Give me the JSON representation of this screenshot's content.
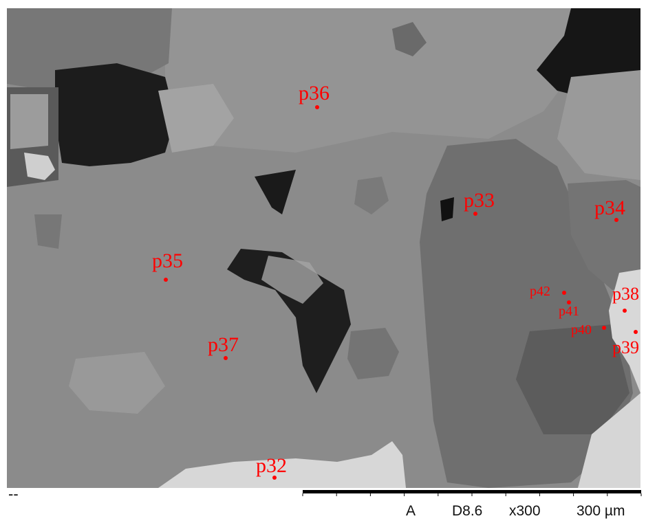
{
  "image": {
    "description_colors": {
      "matrix_gray": "#8a8a8a",
      "dark_pore": "#1a1a1a",
      "bright_phase": "#d4d4d4",
      "mid_gray_grain": "#7a7a7a",
      "label_red": "#ff0000"
    }
  },
  "points": [
    {
      "label": "p36"
    },
    {
      "label": "p33"
    },
    {
      "label": "p34"
    },
    {
      "label": "p35"
    },
    {
      "label": "p42"
    },
    {
      "label": "p41"
    },
    {
      "label": "p38"
    },
    {
      "label": "p40"
    },
    {
      "label": "p39"
    },
    {
      "label": "p37"
    },
    {
      "label": "p32"
    }
  ],
  "footer": {
    "left_mark": "--",
    "detector": "A",
    "working_distance": "D8.6",
    "magnification": "x300",
    "scale_label": "300 µm"
  }
}
